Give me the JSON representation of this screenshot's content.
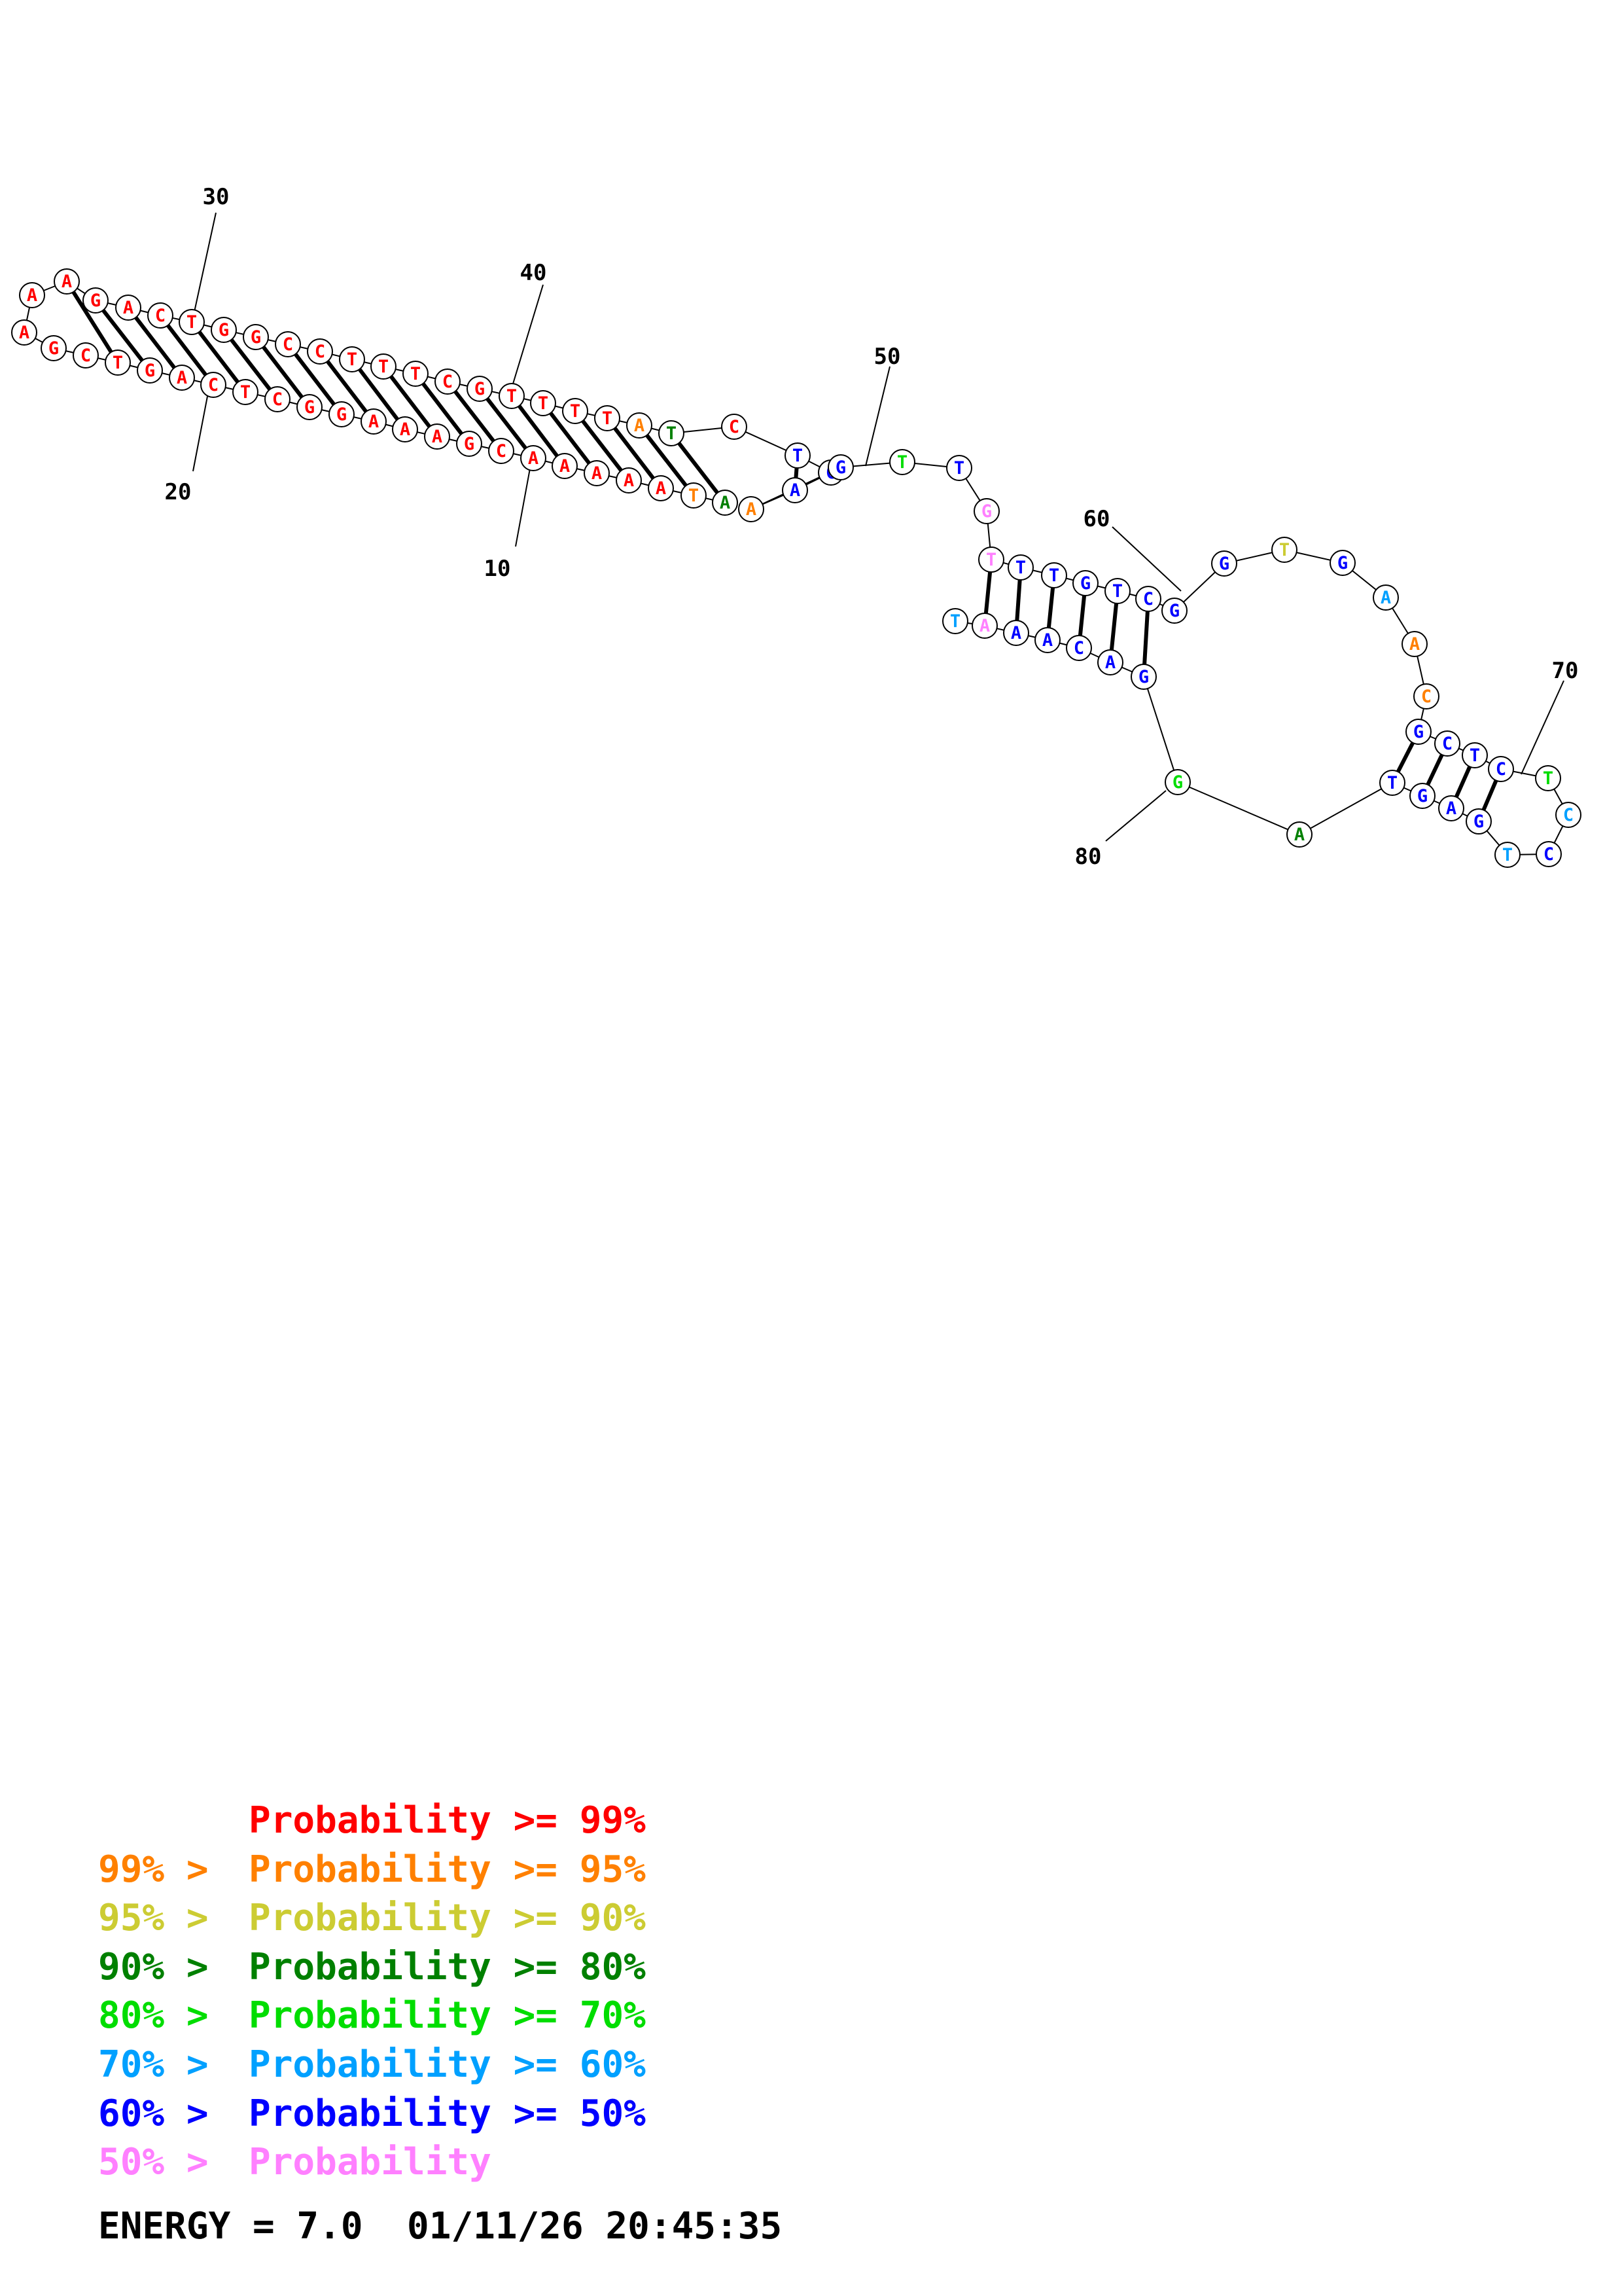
{
  "colors": {
    "red": "#ff0000",
    "orange": "#ff8000",
    "yellow": "#cccc33",
    "darkgreen": "#008000",
    "green": "#00dd00",
    "cyan": "#00a0ff",
    "blue": "#0000ff",
    "pink": "#ff80ff"
  },
  "nucleotides": [
    {
      "n": 1,
      "base": "A",
      "color": "darkgreen"
    },
    {
      "n": 2,
      "base": "T",
      "color": "orange"
    },
    {
      "n": 3,
      "base": "A",
      "color": "red"
    },
    {
      "n": 4,
      "base": "A",
      "color": "red"
    },
    {
      "n": 5,
      "base": "A",
      "color": "red"
    },
    {
      "n": 6,
      "base": "A",
      "color": "red"
    },
    {
      "n": 7,
      "base": "A",
      "color": "red"
    },
    {
      "n": 8,
      "base": "C",
      "color": "red"
    },
    {
      "n": 9,
      "base": "G",
      "color": "red"
    },
    {
      "n": 10,
      "base": "A",
      "color": "red"
    },
    {
      "n": 11,
      "base": "A",
      "color": "red"
    },
    {
      "n": 12,
      "base": "A",
      "color": "red"
    },
    {
      "n": 13,
      "base": "G",
      "color": "red"
    },
    {
      "n": 14,
      "base": "G",
      "color": "red"
    },
    {
      "n": 15,
      "base": "C",
      "color": "red"
    },
    {
      "n": 16,
      "base": "T",
      "color": "red"
    },
    {
      "n": 17,
      "base": "C",
      "color": "red"
    },
    {
      "n": 18,
      "base": "A",
      "color": "red"
    },
    {
      "n": 19,
      "base": "G",
      "color": "red"
    },
    {
      "n": 20,
      "base": "T",
      "color": "red"
    },
    {
      "n": 21,
      "base": "C",
      "color": "red"
    },
    {
      "n": 22,
      "base": "G",
      "color": "red"
    },
    {
      "n": 23,
      "base": "A",
      "color": "red"
    },
    {
      "n": 24,
      "base": "A",
      "color": "red"
    },
    {
      "n": 25,
      "base": "A",
      "color": "red"
    },
    {
      "n": 26,
      "base": "G",
      "color": "red"
    },
    {
      "n": 27,
      "base": "A",
      "color": "red"
    },
    {
      "n": 28,
      "base": "C",
      "color": "red"
    },
    {
      "n": 29,
      "base": "T",
      "color": "red"
    },
    {
      "n": 30,
      "base": "G",
      "color": "red"
    },
    {
      "n": 31,
      "base": "G",
      "color": "red"
    },
    {
      "n": 32,
      "base": "C",
      "color": "red"
    },
    {
      "n": 33,
      "base": "C",
      "color": "red"
    },
    {
      "n": 34,
      "base": "T",
      "color": "red"
    },
    {
      "n": 35,
      "base": "T",
      "color": "red"
    },
    {
      "n": 36,
      "base": "T",
      "color": "red"
    },
    {
      "n": 37,
      "base": "C",
      "color": "red"
    },
    {
      "n": 38,
      "base": "G",
      "color": "red"
    },
    {
      "n": 39,
      "base": "T",
      "color": "red"
    },
    {
      "n": 40,
      "base": "T",
      "color": "red"
    },
    {
      "n": 41,
      "base": "T",
      "color": "red"
    },
    {
      "n": 42,
      "base": "T",
      "color": "red"
    },
    {
      "n": 43,
      "base": "A",
      "color": "orange"
    },
    {
      "n": 44,
      "base": "T",
      "color": "darkgreen"
    },
    {
      "n": 45,
      "base": "C",
      "color": "red"
    },
    {
      "n": 46,
      "base": "T",
      "color": "blue"
    },
    {
      "n": 47,
      "base": "C",
      "color": "blue"
    },
    {
      "n": 48,
      "base": "A",
      "color": "blue"
    },
    {
      "n": 49,
      "base": "A",
      "color": "orange"
    },
    {
      "n": 50,
      "base": "G",
      "color": "blue"
    },
    {
      "n": 51,
      "base": "T",
      "color": "green"
    },
    {
      "n": 52,
      "base": "T",
      "color": "blue"
    },
    {
      "n": 53,
      "base": "G",
      "color": "pink"
    },
    {
      "n": 54,
      "base": "T",
      "color": "pink"
    },
    {
      "n": 55,
      "base": "T",
      "color": "blue"
    },
    {
      "n": 56,
      "base": "T",
      "color": "blue"
    },
    {
      "n": 57,
      "base": "G",
      "color": "blue"
    },
    {
      "n": 58,
      "base": "T",
      "color": "blue"
    },
    {
      "n": 59,
      "base": "C",
      "color": "blue"
    },
    {
      "n": 60,
      "base": "G",
      "color": "blue"
    },
    {
      "n": 61,
      "base": "G",
      "color": "blue"
    },
    {
      "n": 62,
      "base": "T",
      "color": "yellow"
    },
    {
      "n": 63,
      "base": "G",
      "color": "blue"
    },
    {
      "n": 64,
      "base": "A",
      "color": "cyan"
    },
    {
      "n": 65,
      "base": "A",
      "color": "orange"
    },
    {
      "n": 66,
      "base": "C",
      "color": "orange"
    },
    {
      "n": 67,
      "base": "G",
      "color": "blue"
    },
    {
      "n": 68,
      "base": "C",
      "color": "blue"
    },
    {
      "n": 69,
      "base": "T",
      "color": "blue"
    },
    {
      "n": 70,
      "base": "C",
      "color": "blue"
    },
    {
      "n": 71,
      "base": "T",
      "color": "green"
    },
    {
      "n": 72,
      "base": "C",
      "color": "cyan"
    },
    {
      "n": 73,
      "base": "C",
      "color": "blue"
    },
    {
      "n": 74,
      "base": "T",
      "color": "cyan"
    },
    {
      "n": 75,
      "base": "G",
      "color": "blue"
    },
    {
      "n": 76,
      "base": "A",
      "color": "blue"
    },
    {
      "n": 77,
      "base": "G",
      "color": "blue"
    },
    {
      "n": 78,
      "base": "T",
      "color": "blue"
    },
    {
      "n": 79,
      "base": "A",
      "color": "darkgreen"
    },
    {
      "n": 80,
      "base": "G",
      "color": "green"
    },
    {
      "n": 81,
      "base": "G",
      "color": "blue"
    },
    {
      "n": 82,
      "base": "A",
      "color": "blue"
    },
    {
      "n": 83,
      "base": "C",
      "color": "blue"
    },
    {
      "n": 84,
      "base": "A",
      "color": "blue"
    },
    {
      "n": 85,
      "base": "A",
      "color": "blue"
    },
    {
      "n": 86,
      "base": "A",
      "color": "pink"
    },
    {
      "n": 87,
      "base": "T",
      "color": "cyan"
    }
  ],
  "base_pairs": [
    [
      1,
      44
    ],
    [
      2,
      43
    ],
    [
      3,
      42
    ],
    [
      4,
      41
    ],
    [
      5,
      40
    ],
    [
      6,
      39
    ],
    [
      7,
      38
    ],
    [
      8,
      37
    ],
    [
      9,
      36
    ],
    [
      10,
      35
    ],
    [
      11,
      34
    ],
    [
      12,
      33
    ],
    [
      13,
      32
    ],
    [
      14,
      31
    ],
    [
      15,
      30
    ],
    [
      16,
      29
    ],
    [
      17,
      28
    ],
    [
      18,
      27
    ],
    [
      19,
      26
    ],
    [
      20,
      25
    ],
    [
      47,
      50
    ],
    [
      48,
      46
    ],
    [
      54,
      86
    ],
    [
      55,
      85
    ],
    [
      56,
      84
    ],
    [
      57,
      83
    ],
    [
      58,
      82
    ],
    [
      59,
      81
    ],
    [
      67,
      78
    ],
    [
      68,
      77
    ],
    [
      69,
      76
    ],
    [
      70,
      75
    ]
  ],
  "position_labels": [
    {
      "n": 10,
      "text": "10"
    },
    {
      "n": 20,
      "text": "20"
    },
    {
      "n": 30,
      "text": "30"
    },
    {
      "n": 40,
      "text": "40"
    },
    {
      "n": 50,
      "text": "50"
    },
    {
      "n": 60,
      "text": "60"
    },
    {
      "n": 70,
      "text": "70"
    },
    {
      "n": 80,
      "text": "80"
    }
  ],
  "legend": [
    {
      "prefix": "",
      "text": "Probability >= 99%",
      "color": "#ff0000"
    },
    {
      "prefix": "99% >",
      "text": "Probability >= 95%",
      "color": "#ff8000"
    },
    {
      "prefix": "95% >",
      "text": "Probability >= 90%",
      "color": "#cccc33"
    },
    {
      "prefix": "90% >",
      "text": "Probability >= 80%",
      "color": "#008000"
    },
    {
      "prefix": "80% >",
      "text": "Probability >= 70%",
      "color": "#00dd00"
    },
    {
      "prefix": "70% >",
      "text": "Probability >= 60%",
      "color": "#00a0ff"
    },
    {
      "prefix": "60% >",
      "text": "Probability >= 50%",
      "color": "#0000ff"
    },
    {
      "prefix": "50% >",
      "text": "Probability",
      "color": "#ff80ff"
    }
  ],
  "footer": {
    "energy": "ENERGY = 7.0  01/11/26 20:45:35"
  }
}
